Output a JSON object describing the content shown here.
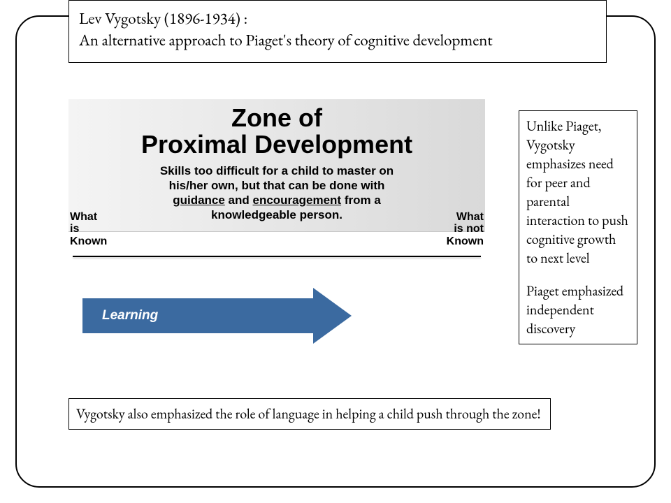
{
  "colors": {
    "border": "#000000",
    "background": "#ffffff",
    "arrow_fill": "#3b6aa0",
    "arrow_text": "#ffffff",
    "gradient_from": "#f4f4f4",
    "gradient_to": "#d9d9d9"
  },
  "title": {
    "line1": "Lev Vygotsky (1896-1934) :",
    "line2": "An alternative approach to Piaget's theory of cognitive development"
  },
  "zpd": {
    "heading_line1": "Zone of",
    "heading_line2": "Proximal Development",
    "description_html": "Skills too difficult for a child to master on his/her own, but that can be done with <span class='u'>guidance</span> and <span class='u'>encouragement</span> from a knowledgeable person.",
    "left_label_line1": "What",
    "left_label_line2": "is",
    "left_label_line3": "Known",
    "right_label_line1": "What",
    "right_label_line2": "is not",
    "right_label_line3": "Known",
    "arrow_label": "Learning"
  },
  "right_box": {
    "p1": "Unlike Piaget, Vygotsky emphasizes need for peer and parental interaction to push cognitive growth to next level",
    "p2": "Piaget emphasized independent discovery"
  },
  "bottom_box": {
    "text": "Vygotsky also emphasized the role of language in helping a child push through the zone!"
  }
}
